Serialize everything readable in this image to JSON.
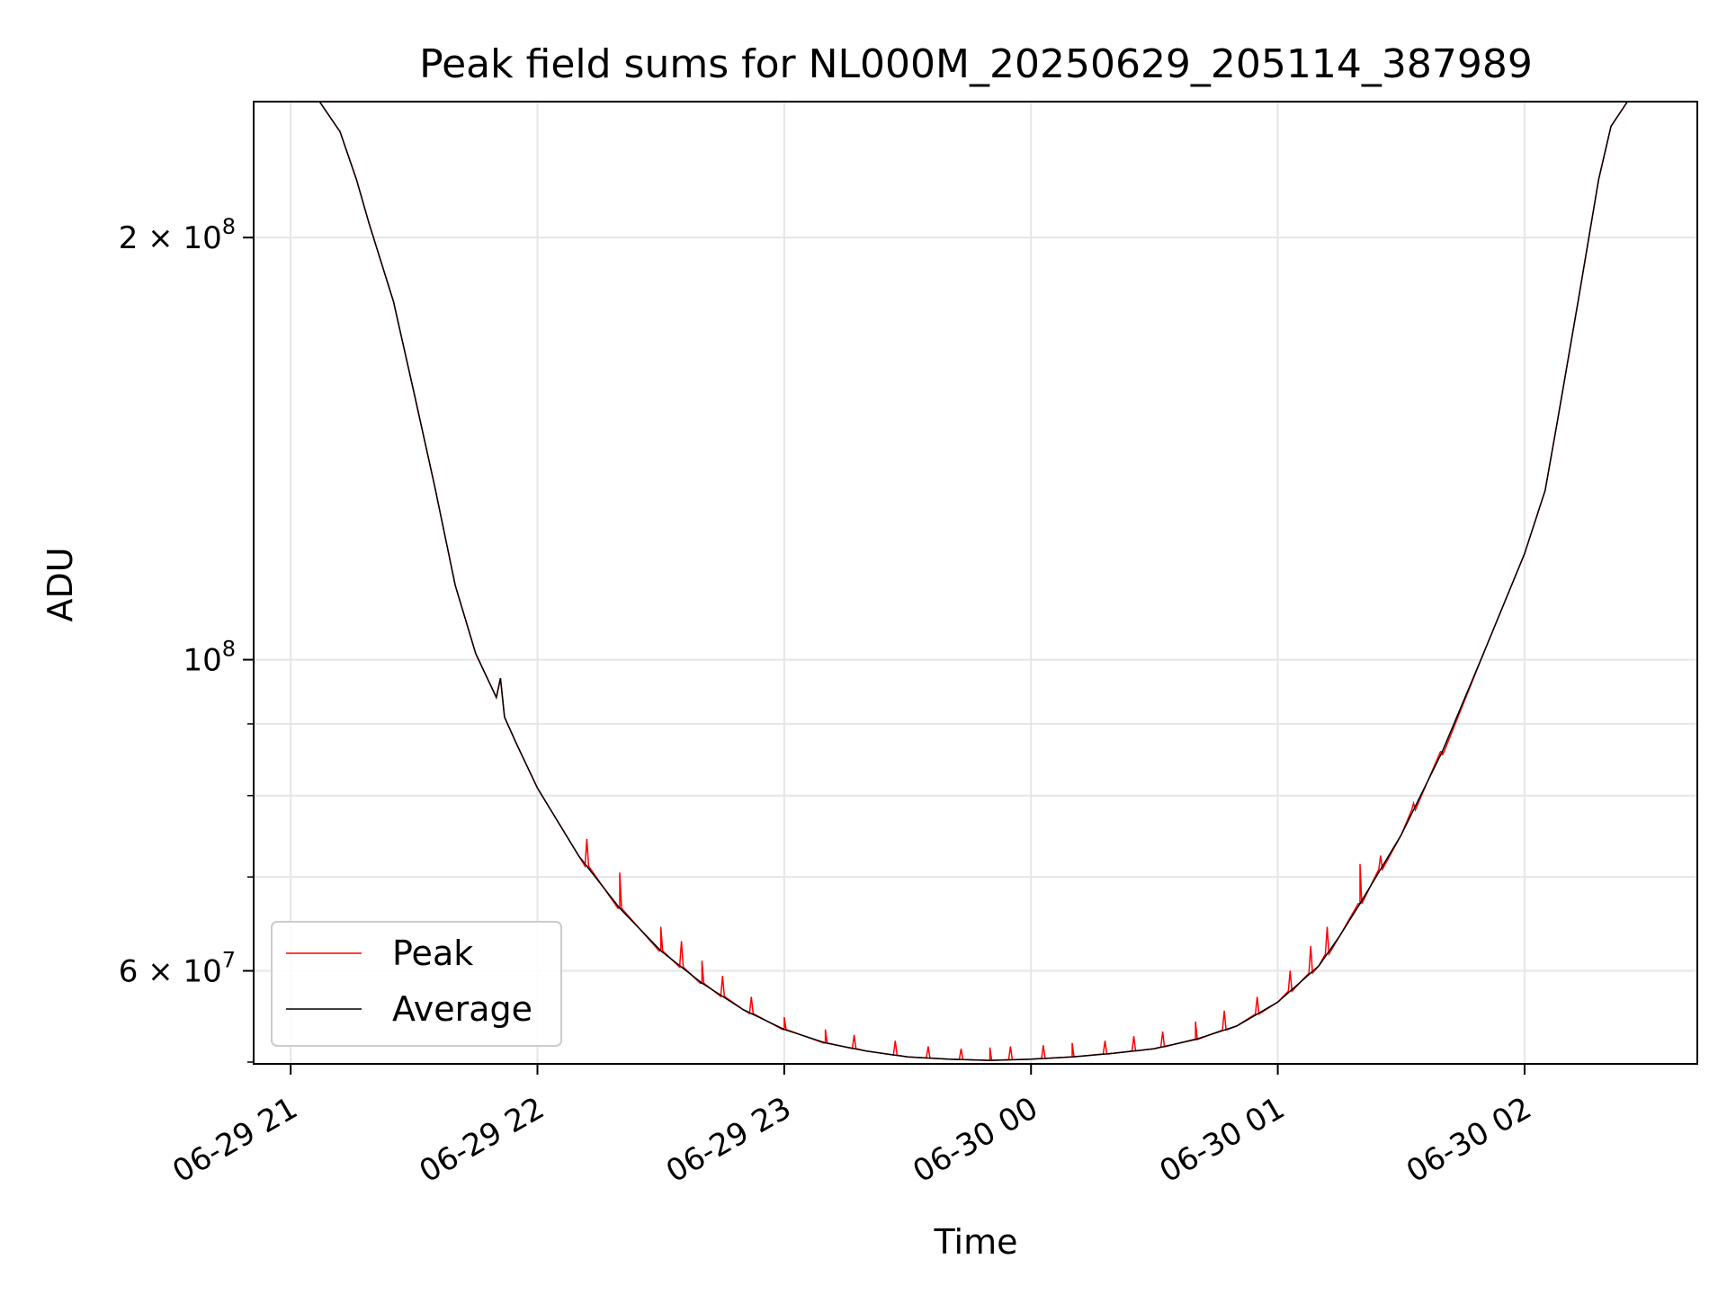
{
  "chart_data": {
    "type": "line",
    "title": "Peak field sums for NL000M_20250629_205114_387989",
    "xlabel": "Time",
    "ylabel": "ADU",
    "y_scale": "log",
    "ylim": [
      51500000,
      250000000
    ],
    "xlim": [
      "2025-06-29 20:51",
      "2025-06-30 02:42"
    ],
    "x_ticks": [
      {
        "value": "2025-06-29 21:00",
        "label": "06-29 21"
      },
      {
        "value": "2025-06-29 22:00",
        "label": "06-29 22"
      },
      {
        "value": "2025-06-29 23:00",
        "label": "06-29 23"
      },
      {
        "value": "2025-06-30 00:00",
        "label": "06-30 00"
      },
      {
        "value": "2025-06-30 01:00",
        "label": "06-30 01"
      },
      {
        "value": "2025-06-30 02:00",
        "label": "06-30 02"
      }
    ],
    "y_ticks_major": [
      {
        "value": 100000000,
        "base": "10",
        "exp": "8",
        "mant": ""
      },
      {
        "value": 200000000,
        "base": "10",
        "exp": "8",
        "mant": "2 × "
      },
      {
        "value": 60000000,
        "base": "10",
        "exp": "7",
        "mant": "6 × "
      }
    ],
    "y_ticks_minor": [
      70000000,
      80000000,
      90000000
    ],
    "grid": true,
    "legend": {
      "placement": "lower-left",
      "entries": [
        "Peak",
        "Average"
      ]
    },
    "series": [
      {
        "name": "Average",
        "color": "#000000",
        "points": [
          [
            "2025-06-29 20:51",
            250000000
          ],
          [
            "2025-06-29 21:00",
            250000000
          ],
          [
            "2025-06-29 21:07",
            250000000
          ],
          [
            "2025-06-29 21:12",
            238000000
          ],
          [
            "2025-06-29 21:16",
            220000000
          ],
          [
            "2025-06-29 21:19",
            205000000
          ],
          [
            "2025-06-29 21:25",
            180000000
          ],
          [
            "2025-06-29 21:30",
            155000000
          ],
          [
            "2025-06-29 21:35",
            133000000
          ],
          [
            "2025-06-29 21:40",
            113000000
          ],
          [
            "2025-06-29 21:45",
            101000000
          ],
          [
            "2025-06-29 21:50",
            94000000
          ],
          [
            "2025-06-29 21:51",
            97000000
          ],
          [
            "2025-06-29 21:52",
            91000000
          ],
          [
            "2025-06-29 21:55",
            87000000
          ],
          [
            "2025-06-29 22:00",
            81000000
          ],
          [
            "2025-06-29 22:10",
            72500000
          ],
          [
            "2025-06-29 22:20",
            66500000
          ],
          [
            "2025-06-29 22:30",
            62000000
          ],
          [
            "2025-06-29 22:40",
            58800000
          ],
          [
            "2025-06-29 22:50",
            56300000
          ],
          [
            "2025-06-29 23:00",
            54500000
          ],
          [
            "2025-06-29 23:10",
            53300000
          ],
          [
            "2025-06-29 23:20",
            52600000
          ],
          [
            "2025-06-29 23:30",
            52100000
          ],
          [
            "2025-06-29 23:40",
            51900000
          ],
          [
            "2025-06-29 23:50",
            51800000
          ],
          [
            "2025-06-30 00:00",
            51900000
          ],
          [
            "2025-06-30 00:10",
            52100000
          ],
          [
            "2025-06-30 00:20",
            52400000
          ],
          [
            "2025-06-30 00:30",
            52800000
          ],
          [
            "2025-06-30 00:40",
            53600000
          ],
          [
            "2025-06-30 00:50",
            54800000
          ],
          [
            "2025-06-30 01:00",
            57000000
          ],
          [
            "2025-06-30 01:10",
            60500000
          ],
          [
            "2025-06-30 01:15",
            63500000
          ],
          [
            "2025-06-30 01:20",
            67000000
          ],
          [
            "2025-06-30 01:30",
            75000000
          ],
          [
            "2025-06-30 01:40",
            86000000
          ],
          [
            "2025-06-30 01:50",
            101000000
          ],
          [
            "2025-06-30 02:00",
            119000000
          ],
          [
            "2025-06-30 02:05",
            132000000
          ],
          [
            "2025-06-30 02:08",
            148000000
          ],
          [
            "2025-06-30 02:13",
            180000000
          ],
          [
            "2025-06-30 02:18",
            220000000
          ],
          [
            "2025-06-30 02:21",
            240000000
          ],
          [
            "2025-06-30 02:25",
            250000000
          ],
          [
            "2025-06-30 02:42",
            250000000
          ]
        ]
      },
      {
        "name": "Peak",
        "color": "#ff0000",
        "note_spikes": [
          [
            "2025-06-29 22:12",
            74500000
          ],
          [
            "2025-06-29 22:20",
            70500000
          ],
          [
            "2025-06-29 22:30",
            64500000
          ],
          [
            "2025-06-29 22:35",
            63000000
          ],
          [
            "2025-06-29 22:40",
            61000000
          ],
          [
            "2025-06-29 22:45",
            59500000
          ],
          [
            "2025-06-29 22:52",
            57500000
          ],
          [
            "2025-06-29 23:00",
            55600000
          ],
          [
            "2025-06-29 23:10",
            54500000
          ],
          [
            "2025-06-29 23:17",
            54000000
          ],
          [
            "2025-06-29 23:27",
            53500000
          ],
          [
            "2025-06-29 23:35",
            53000000
          ],
          [
            "2025-06-29 23:43",
            52800000
          ],
          [
            "2025-06-29 23:50",
            52900000
          ],
          [
            "2025-06-29 23:55",
            53000000
          ],
          [
            "2025-06-30 00:03",
            53100000
          ],
          [
            "2025-06-30 00:10",
            53300000
          ],
          [
            "2025-06-30 00:18",
            53500000
          ],
          [
            "2025-06-30 00:25",
            53900000
          ],
          [
            "2025-06-30 00:32",
            54300000
          ],
          [
            "2025-06-30 00:40",
            55200000
          ],
          [
            "2025-06-30 00:47",
            56200000
          ],
          [
            "2025-06-30 00:55",
            57500000
          ],
          [
            "2025-06-30 01:03",
            60000000
          ],
          [
            "2025-06-30 01:08",
            62500000
          ],
          [
            "2025-06-30 01:12",
            64500000
          ],
          [
            "2025-06-30 01:20",
            71500000
          ],
          [
            "2025-06-30 01:25",
            72500000
          ],
          [
            "2025-06-30 01:33",
            79000000
          ],
          [
            "2025-06-30 01:40",
            85500000
          ]
        ]
      }
    ]
  }
}
